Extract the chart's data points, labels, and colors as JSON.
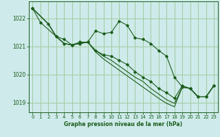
{
  "title": "Graphe pression niveau de la mer (hPa)",
  "bg_color": "#ceeaea",
  "grid_color": "#a0cca0",
  "line_color": "#1a5c1a",
  "ylim": [
    1018.65,
    1022.6
  ],
  "xlim": [
    -0.5,
    23.5
  ],
  "yticks": [
    1019,
    1020,
    1021,
    1022
  ],
  "xticks": [
    0,
    1,
    2,
    3,
    4,
    5,
    6,
    7,
    8,
    9,
    10,
    11,
    12,
    13,
    14,
    15,
    16,
    17,
    18,
    19,
    20,
    21,
    22,
    23
  ],
  "series": [
    {
      "points": [
        [
          0,
          1022.35
        ],
        [
          1,
          1021.85
        ],
        [
          3,
          1021.35
        ],
        [
          4,
          1021.25
        ],
        [
          5,
          1021.05
        ],
        [
          6,
          1021.15
        ],
        [
          7,
          1021.15
        ],
        [
          8,
          1021.55
        ],
        [
          9,
          1021.45
        ],
        [
          10,
          1021.5
        ],
        [
          11,
          1021.9
        ],
        [
          12,
          1021.75
        ],
        [
          13,
          1021.3
        ],
        [
          14,
          1021.25
        ],
        [
          15,
          1021.1
        ],
        [
          16,
          1020.85
        ],
        [
          17,
          1020.65
        ],
        [
          18,
          1019.9
        ],
        [
          19,
          1019.55
        ],
        [
          20,
          1019.5
        ],
        [
          21,
          1019.2
        ],
        [
          22,
          1019.2
        ],
        [
          23,
          1019.6
        ]
      ],
      "marker": true
    },
    {
      "points": [
        [
          0,
          1022.35
        ],
        [
          2,
          1021.8
        ],
        [
          3,
          1021.35
        ],
        [
          4,
          1021.1
        ],
        [
          5,
          1021.05
        ],
        [
          6,
          1021.1
        ],
        [
          7,
          1021.15
        ],
        [
          8,
          1020.85
        ],
        [
          9,
          1020.7
        ],
        [
          10,
          1020.6
        ],
        [
          11,
          1020.5
        ],
        [
          12,
          1020.35
        ],
        [
          13,
          1020.1
        ],
        [
          14,
          1019.9
        ],
        [
          15,
          1019.75
        ],
        [
          16,
          1019.5
        ],
        [
          17,
          1019.35
        ],
        [
          18,
          1019.1
        ],
        [
          19,
          1019.6
        ],
        [
          20,
          1019.5
        ],
        [
          21,
          1019.2
        ],
        [
          22,
          1019.2
        ],
        [
          23,
          1019.6
        ]
      ],
      "marker": false
    },
    {
      "points": [
        [
          0,
          1022.35
        ],
        [
          2,
          1021.8
        ],
        [
          3,
          1021.35
        ],
        [
          4,
          1021.1
        ],
        [
          5,
          1021.05
        ],
        [
          6,
          1021.1
        ],
        [
          7,
          1021.15
        ],
        [
          8,
          1020.85
        ],
        [
          9,
          1020.7
        ],
        [
          10,
          1020.55
        ],
        [
          11,
          1020.4
        ],
        [
          12,
          1020.2
        ],
        [
          13,
          1019.95
        ],
        [
          14,
          1019.75
        ],
        [
          15,
          1019.55
        ],
        [
          16,
          1019.3
        ],
        [
          17,
          1019.1
        ],
        [
          18,
          1018.95
        ],
        [
          19,
          1019.6
        ],
        [
          20,
          1019.5
        ],
        [
          21,
          1019.2
        ],
        [
          22,
          1019.2
        ],
        [
          23,
          1019.6
        ]
      ],
      "marker": false
    },
    {
      "points": [
        [
          0,
          1022.35
        ],
        [
          2,
          1021.8
        ],
        [
          3,
          1021.35
        ],
        [
          4,
          1021.1
        ],
        [
          5,
          1021.05
        ],
        [
          6,
          1021.1
        ],
        [
          7,
          1021.15
        ],
        [
          8,
          1020.85
        ],
        [
          9,
          1020.7
        ],
        [
          10,
          1020.55
        ],
        [
          11,
          1020.4
        ],
        [
          12,
          1020.2
        ],
        [
          13,
          1019.95
        ],
        [
          14,
          1019.75
        ],
        [
          15,
          1019.55
        ],
        [
          16,
          1019.3
        ],
        [
          17,
          1019.1
        ],
        [
          18,
          1018.95
        ],
        [
          19,
          1019.6
        ],
        [
          20,
          1019.5
        ],
        [
          21,
          1019.2
        ],
        [
          22,
          1019.2
        ],
        [
          23,
          1019.6
        ]
      ],
      "marker": false
    }
  ]
}
